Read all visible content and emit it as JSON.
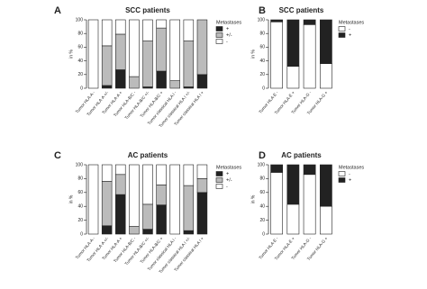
{
  "chart_data": [
    {
      "type": "bar",
      "stacked": true,
      "panel_label": "A",
      "title": "SCC patients",
      "ylabel": "in %",
      "categories": [
        "Tumor HLA-A -",
        "Tumor HLA-A +/-",
        "Tumor HLA-A +",
        "Tumor HLA-B/C -",
        "Tumor HLA-B/C +/-",
        "Tumor HLA-B/C +",
        "Tumor classical HLA I -",
        "Tumor classical HLA I +/-",
        "Tumor classical HLA I +"
      ],
      "legend_title": "Metastases",
      "series": [
        {
          "name": "+",
          "color": "#222222",
          "values": [
            0,
            4,
            27,
            0,
            2,
            25,
            0,
            2,
            20
          ]
        },
        {
          "name": "+/-",
          "color": "#bbbbbb",
          "values": [
            0,
            58,
            52,
            17,
            67,
            63,
            11,
            67,
            80
          ]
        },
        {
          "name": "-",
          "color": "#ffffff",
          "values": [
            100,
            38,
            21,
            83,
            31,
            12,
            89,
            31,
            0
          ]
        }
      ],
      "ylim": [
        0,
        100
      ],
      "yticks": [
        0,
        20,
        40,
        60,
        80,
        100
      ]
    },
    {
      "type": "bar",
      "stacked": true,
      "panel_label": "B",
      "title": "SCC patients",
      "ylabel": "in %",
      "categories": [
        "Tumor HLA-E -",
        "Tumor HLA-E +",
        "Tumor HLA-G -",
        "Tumor HLA-G +"
      ],
      "legend_title": "Metastases",
      "series": [
        {
          "name": "-",
          "color": "#ffffff",
          "values": [
            97,
            32,
            93,
            36
          ]
        },
        {
          "name": "+",
          "color": "#222222",
          "values": [
            3,
            68,
            7,
            64
          ]
        }
      ],
      "ylim": [
        0,
        100
      ],
      "yticks": [
        0,
        20,
        40,
        60,
        80,
        100
      ]
    },
    {
      "type": "bar",
      "stacked": true,
      "panel_label": "C",
      "title": "AC patients",
      "ylabel": "in %",
      "categories": [
        "Tumor HLA-A -",
        "Tumor HLA-A +/-",
        "Tumor HLA-A +",
        "Tumor HLA-B/C -",
        "Tumor HLA-B/C +/-",
        "Tumor HLA-B/C +",
        "Tumor classical HLA I -",
        "Tumor classical HLA I +/-",
        "Tumor classical HLA I +"
      ],
      "legend_title": "Metastases",
      "series": [
        {
          "name": "+",
          "color": "#222222",
          "values": [
            0,
            12,
            57,
            0,
            7,
            42,
            0,
            5,
            60
          ]
        },
        {
          "name": "+/-",
          "color": "#bbbbbb",
          "values": [
            0,
            64,
            29,
            11,
            36,
            29,
            0,
            65,
            20
          ]
        },
        {
          "name": "-",
          "color": "#ffffff",
          "values": [
            100,
            24,
            14,
            89,
            57,
            29,
            100,
            30,
            20
          ]
        }
      ],
      "ylim": [
        0,
        100
      ],
      "yticks": [
        0,
        20,
        40,
        60,
        80,
        100
      ]
    },
    {
      "type": "bar",
      "stacked": true,
      "panel_label": "D",
      "title": "AC patients",
      "ylabel": "in %",
      "categories": [
        "Tumor HLA-E -",
        "Tumor HLA-E +",
        "Tumor HLA-G -",
        "Tumor HLA-G +"
      ],
      "legend_title": "Metastases",
      "series": [
        {
          "name": "-",
          "color": "#ffffff",
          "values": [
            89,
            43,
            86,
            40
          ]
        },
        {
          "name": "+",
          "color": "#222222",
          "values": [
            11,
            57,
            14,
            60
          ]
        }
      ],
      "ylim": [
        0,
        100
      ],
      "yticks": [
        0,
        20,
        40,
        60,
        80,
        100
      ]
    }
  ]
}
